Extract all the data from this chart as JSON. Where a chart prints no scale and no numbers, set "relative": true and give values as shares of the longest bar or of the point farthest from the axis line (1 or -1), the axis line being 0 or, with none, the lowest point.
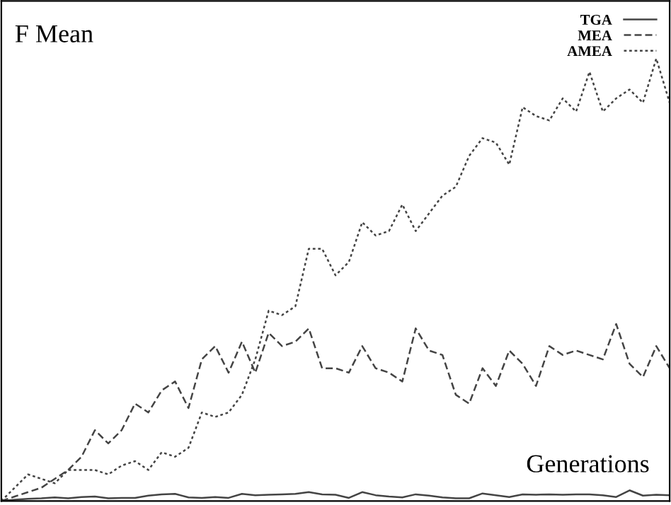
{
  "chart_data": {
    "type": "line",
    "relative": true,
    "xlabel": "Generations",
    "ylabel": "F Mean",
    "legend": "top right",
    "grid": false,
    "categories": [
      null,
      null,
      null,
      null,
      null,
      null,
      null,
      null,
      null,
      null,
      null,
      null,
      null,
      null,
      null,
      null,
      null,
      null,
      null,
      null,
      null,
      null,
      null,
      null,
      null,
      null,
      null,
      null,
      null,
      null,
      null,
      null,
      null,
      null,
      null,
      null,
      null,
      null,
      null,
      null,
      null,
      null,
      null,
      null,
      null,
      null,
      null,
      null,
      null,
      null,
      null
    ],
    "series": [
      {
        "name": "TGA",
        "color": "#444444",
        "line_style": "solid",
        "values": [
          0,
          0.003,
          0.005,
          0.006,
          0.008,
          0.006,
          0.009,
          0.01,
          0.006,
          0.007,
          0.007,
          0.012,
          0.015,
          0.016,
          0.008,
          0.007,
          0.009,
          0.007,
          0.016,
          0.013,
          0.014,
          0.015,
          0.016,
          0.02,
          0.015,
          0.014,
          0.007,
          0.02,
          0.013,
          0.01,
          0.008,
          0.015,
          0.012,
          0.008,
          0.006,
          0.006,
          0.017,
          0.013,
          0.009,
          0.015,
          0.014,
          0.015,
          0.014,
          0.015,
          0.015,
          0.013,
          0.009,
          0.024,
          0.012,
          0.014,
          0.013
        ]
      },
      {
        "name": "MEA",
        "color": "#444444",
        "line_style": "dashed",
        "values": [
          0,
          0.01,
          0.02,
          0.03,
          0.05,
          0.07,
          0.1,
          0.16,
          0.13,
          0.16,
          0.22,
          0.2,
          0.25,
          0.27,
          0.21,
          0.32,
          0.35,
          0.29,
          0.36,
          0.29,
          0.38,
          0.35,
          0.36,
          0.39,
          0.3,
          0.3,
          0.29,
          0.35,
          0.3,
          0.29,
          0.27,
          0.39,
          0.34,
          0.33,
          0.24,
          0.22,
          0.3,
          0.26,
          0.34,
          0.31,
          0.26,
          0.35,
          0.33,
          0.34,
          0.33,
          0.32,
          0.4,
          0.31,
          0.28,
          0.35,
          0.3
        ]
      },
      {
        "name": "AMEA",
        "color": "#444444",
        "line_style": "dotted",
        "values": [
          0,
          0.03,
          0.06,
          0.05,
          0.04,
          0.07,
          0.07,
          0.07,
          0.06,
          0.08,
          0.09,
          0.07,
          0.11,
          0.1,
          0.12,
          0.2,
          0.19,
          0.2,
          0.24,
          0.32,
          0.43,
          0.42,
          0.44,
          0.57,
          0.57,
          0.51,
          0.54,
          0.63,
          0.6,
          0.61,
          0.67,
          0.61,
          0.65,
          0.69,
          0.71,
          0.78,
          0.82,
          0.81,
          0.76,
          0.89,
          0.87,
          0.86,
          0.91,
          0.88,
          0.97,
          0.88,
          0.91,
          0.93,
          0.9,
          1,
          0.9
        ]
      }
    ]
  }
}
